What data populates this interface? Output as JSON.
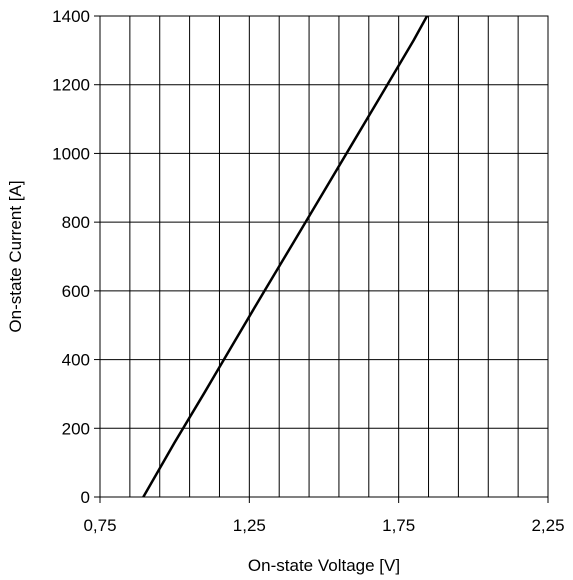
{
  "chart_data": {
    "type": "line",
    "title": "",
    "xlabel": "On-state Voltage [V]",
    "ylabel": "On-state Current [A]",
    "xlim": [
      0.75,
      2.25
    ],
    "ylim": [
      0,
      1400
    ],
    "x_ticks": [
      {
        "value": 0.75,
        "label": "0,75"
      },
      {
        "value": 1.25,
        "label": "1,25"
      },
      {
        "value": 1.75,
        "label": "1,75"
      },
      {
        "value": 2.25,
        "label": "2,25"
      }
    ],
    "y_ticks": [
      {
        "value": 0,
        "label": "0"
      },
      {
        "value": 200,
        "label": "200"
      },
      {
        "value": 400,
        "label": "400"
      },
      {
        "value": 600,
        "label": "600"
      },
      {
        "value": 800,
        "label": "800"
      },
      {
        "value": 1000,
        "label": "1000"
      },
      {
        "value": 1200,
        "label": "1200"
      },
      {
        "value": 1400,
        "label": "1400"
      }
    ],
    "x_gridlines": [
      0.85,
      0.95,
      1.05,
      1.15,
      1.25,
      1.35,
      1.45,
      1.55,
      1.65,
      1.75,
      1.85,
      1.95,
      2.05,
      2.15
    ],
    "y_gridlines": [
      200,
      400,
      600,
      800,
      1000,
      1200
    ],
    "grid": true,
    "legend": "none",
    "series": [
      {
        "x": [
          0.895,
          1.0,
          1.1,
          1.2,
          1.3,
          1.4,
          1.5,
          1.6,
          1.7,
          1.8,
          1.845
        ],
        "y": [
          0,
          159,
          304,
          452,
          599,
          744,
          890,
          1036,
          1182,
          1329,
          1400
        ],
        "color": "#000000"
      }
    ]
  }
}
